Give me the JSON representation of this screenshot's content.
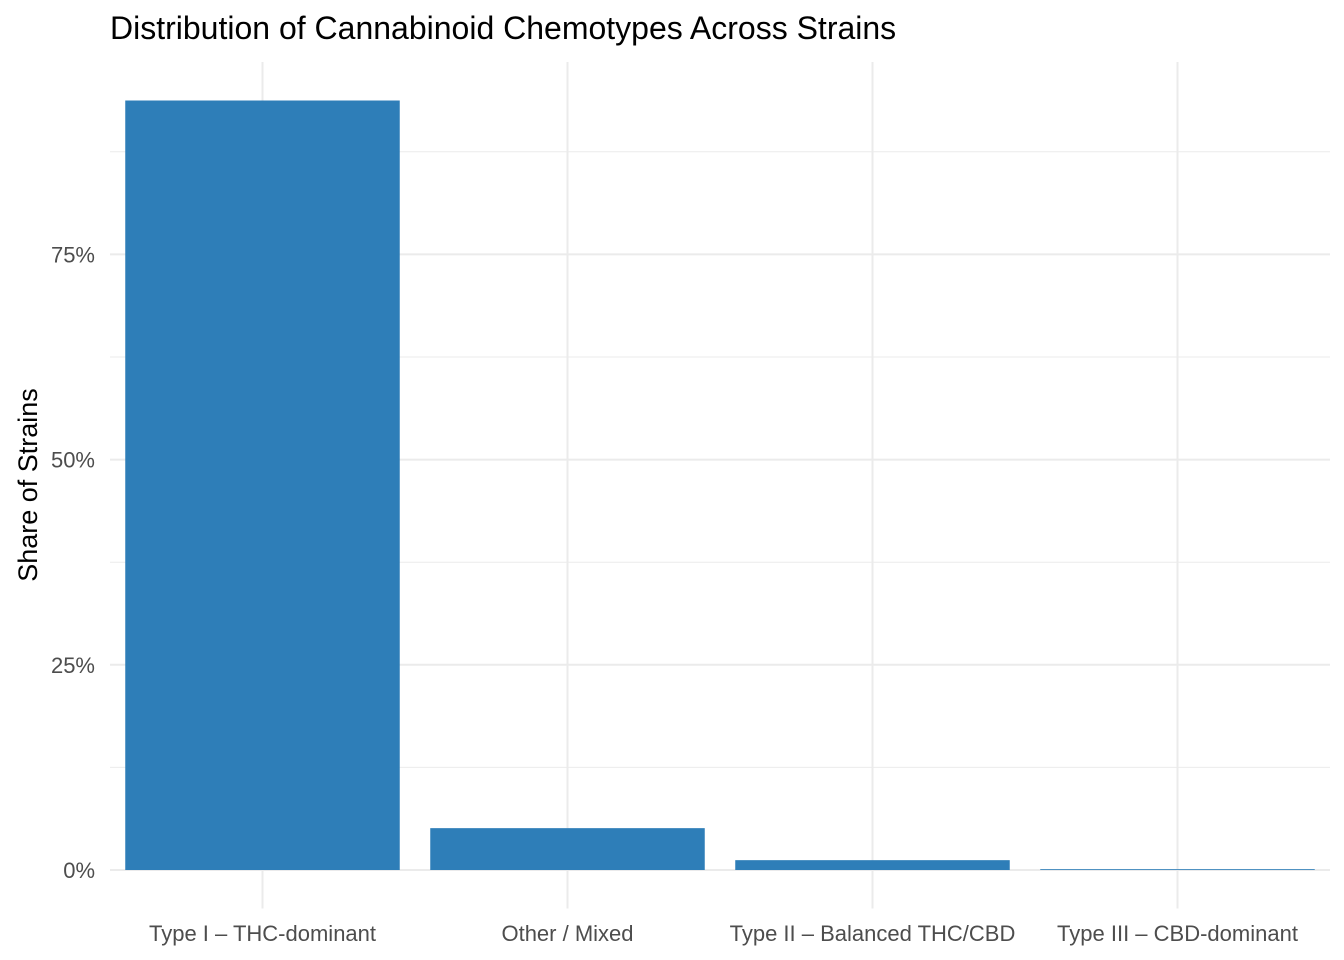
{
  "chart_data": {
    "type": "bar",
    "title": "Distribution of Cannabinoid Chemotypes Across Strains",
    "xlabel": "",
    "ylabel": "Share of Strains",
    "categories": [
      "Type I – THC-dominant",
      "Other / Mixed",
      "Type II – Balanced THC/CBD",
      "Type III – CBD-dominant"
    ],
    "values": [
      93.75,
      5.1,
      1.2,
      0.1
    ],
    "ylim": [
      -4.69,
      98.44
    ],
    "yticks": [
      0,
      25,
      50,
      75
    ],
    "ytick_labels": [
      "0%",
      "25%",
      "50%",
      "75%"
    ],
    "grid": true,
    "bar_color": "#2e7eb8"
  }
}
